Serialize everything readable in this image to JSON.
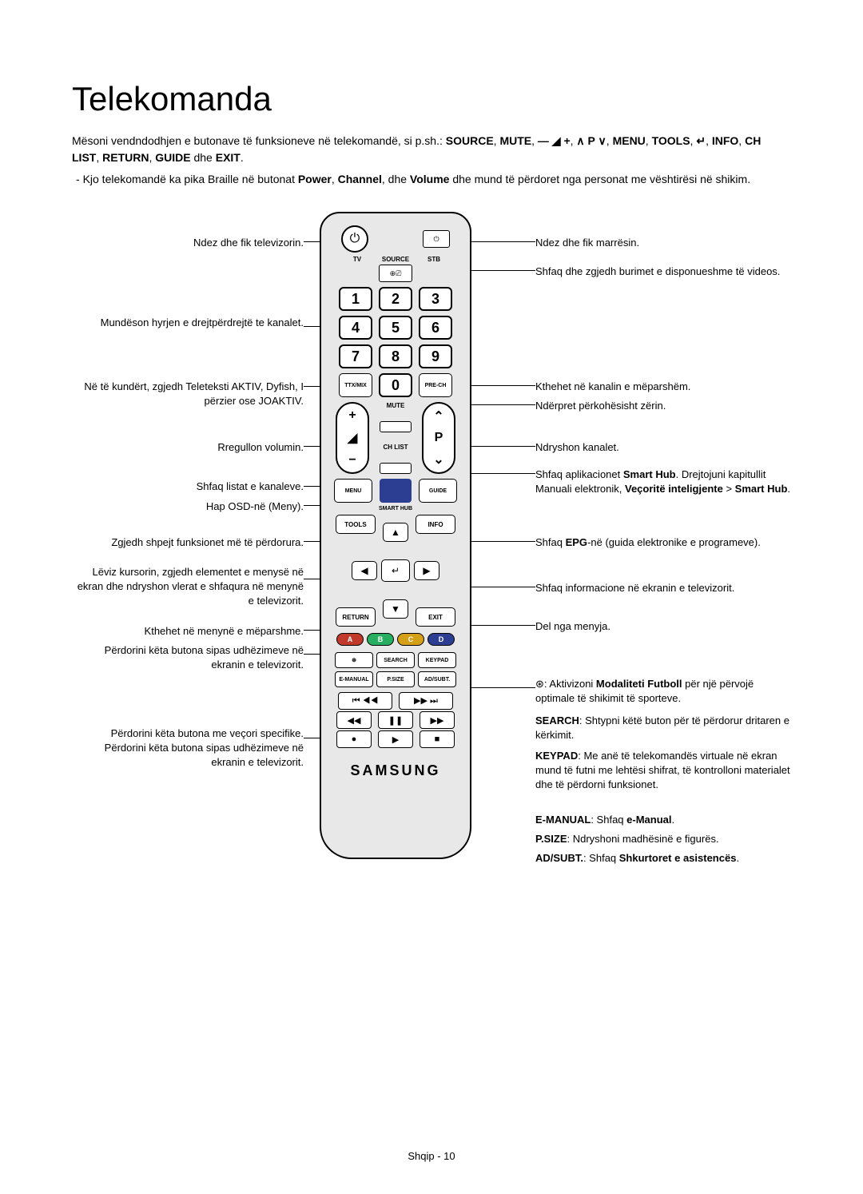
{
  "title": "Telekomanda",
  "intro": "Mësoni vendndodhjen e butonave të funksioneve në telekomandë, si p.sh.: <b>SOURCE</b>, <b>MUTE</b>, <b>— ◢ +</b>, <b>∧ P ∨</b>, <b>MENU</b>, <b>TOOLS</b>, <b>↵</b>, <b>INFO</b>, <b>CH LIST</b>, <b>RETURN</b>, <b>GUIDE</b> dhe <b>EXIT</b>.",
  "note": "Kjo telekomandë ka pika Braille në butonat <b>Power</b>, <b>Channel</b>, dhe <b>Volume</b> dhe mund të përdoret nga personat me vështirësi në shikim.",
  "left": {
    "l1": "Ndez dhe fik televizorin.",
    "l2": "Mundëson hyrjen e drejtpërdrejtë te kanalet.",
    "l3": "Në të kundërt, zgjedh Teleteksti AKTIV, Dyfish, I përzier ose JOAKTIV.",
    "l4": "Rregullon volumin.",
    "l5": "Shfaq listat e kanaleve.",
    "l6": "Hap OSD-në (Meny).",
    "l7": "Zgjedh shpejt funksionet më të përdorura.",
    "l8": "Lëviz kursorin, zgjedh elementet e menysë në ekran dhe ndryshon vlerat e shfaqura në menynë e televizorit.",
    "l9": "Kthehet në menynë e mëparshme.",
    "l10": "Përdorini këta butona sipas udhëzimeve në ekranin e televizorit.",
    "l11": "Përdorini këta butona me veçori specifike. Përdorini këta butona sipas udhëzimeve në ekranin e televizorit."
  },
  "right": {
    "r1": "Ndez dhe fik marrësin.",
    "r2": "Shfaq dhe zgjedh burimet e disponueshme të videos.",
    "r3": "Kthehet në kanalin e mëparshëm.",
    "r4": "Ndërpret përkohësisht zërin.",
    "r5": "Ndryshon kanalet.",
    "r6": "Shfaq aplikacionet <b>Smart Hub</b>. Drejtojuni kapitullit Manuali elektronik, <b>Veçoritë inteligjente</b> > <b>Smart Hub</b>.",
    "r7": "Shfaq <b>EPG</b>-në (guida elektronike e programeve).",
    "r8": "Shfaq informacione në ekranin e televizorit.",
    "r9": "Del nga menyja.",
    "r10": "⊛: Aktivizoni <b>Modaliteti Futboll</b> për një përvojë optimale të shikimit të sporteve.",
    "r11": "<b>SEARCH</b>: Shtypni këtë buton për të përdorur dritaren e kërkimit.",
    "r12": "<b>KEYPAD</b>: Me anë të telekomandës virtuale në ekran mund të futni me lehtësi shifrat, të kontrolloni materialet dhe të përdorni funksionet.",
    "r13": "<b>E-MANUAL</b>: Shfaq <b>e-Manual</b>.",
    "r14": "<b>P.SIZE</b>: Ndryshoni madhësinë e figurës.",
    "r15": "<b>AD/SUBT.</b>: Shfaq <b>Shkurtoret e asistencës</b>."
  },
  "remote": {
    "tv": "TV",
    "stb": "STB",
    "source": "SOURCE",
    "nums": [
      "1",
      "2",
      "3",
      "4",
      "5",
      "6",
      "7",
      "8",
      "9",
      "0"
    ],
    "ttx": "TTX/MIX",
    "prech": "PRE-CH",
    "mute": "MUTE",
    "chlist": "CH LIST",
    "menu": "MENU",
    "guide": "GUIDE",
    "smarthub": "SMART HUB",
    "tools": "TOOLS",
    "info": "INFO",
    "return": "RETURN",
    "exit": "EXIT",
    "colors": [
      {
        "l": "A",
        "c": "#c0392b"
      },
      {
        "l": "B",
        "c": "#27ae60"
      },
      {
        "l": "C",
        "c": "#d4a017"
      },
      {
        "l": "D",
        "c": "#2c3e92"
      }
    ],
    "fn1": [
      "⊛",
      "SEARCH",
      "KEYPAD"
    ],
    "fn2": [
      "E-MANUAL",
      "P.SIZE",
      "AD/SUBT."
    ],
    "logo": "SAMSUNG",
    "p": "P"
  },
  "footer": "Shqip - 10"
}
